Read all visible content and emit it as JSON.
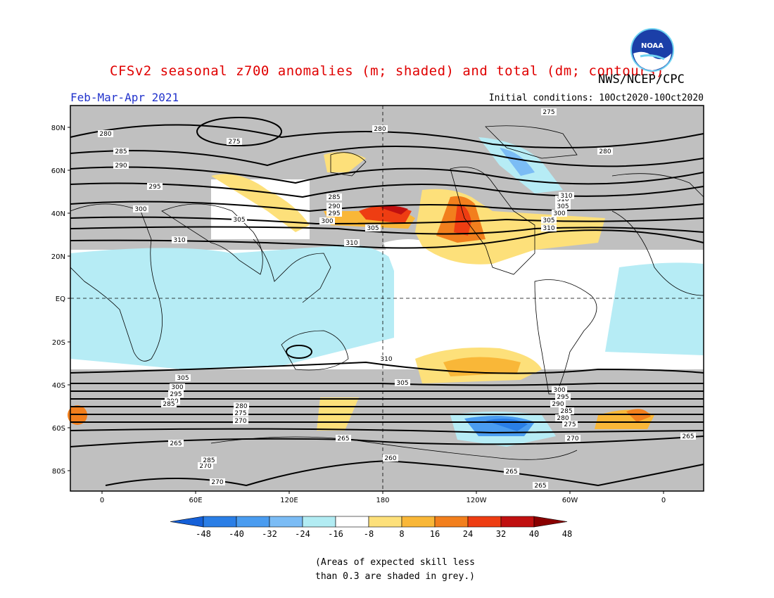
{
  "header": {
    "title": "CFSv2 seasonal z700 anomalies (m; shaded) and total (dm; contours)",
    "agency": "NWS/NCEP/CPC",
    "period": "Feb-Mar-Apr 2021",
    "initial_conditions": "Initial conditions: 10Oct2020-10Oct2020",
    "logo_text": "NOAA"
  },
  "axes": {
    "lat_ticks": [
      "80N",
      "60N",
      "40N",
      "20N",
      "EQ",
      "20S",
      "40S",
      "60S",
      "80S"
    ],
    "lon_ticks": [
      "0",
      "60E",
      "120E",
      "180",
      "120W",
      "60W",
      "0"
    ]
  },
  "contour_labels": [
    "275",
    "280",
    "280",
    "280",
    "275",
    "285",
    "290",
    "295",
    "300",
    "305",
    "310",
    "310",
    "305",
    "300",
    "295",
    "290",
    "285",
    "300",
    "305",
    "310",
    "305",
    "310",
    "310",
    "305",
    "300",
    "295",
    "290",
    "285",
    "280",
    "275",
    "270",
    "265",
    "265",
    "260",
    "265",
    "270",
    "285",
    "270",
    "300",
    "295",
    "290",
    "285",
    "280",
    "275",
    "270",
    "265",
    "265",
    "305",
    "310"
  ],
  "colorbar": {
    "labels": [
      "-48",
      "-40",
      "-32",
      "-24",
      "-16",
      "-8",
      "8",
      "16",
      "24",
      "32",
      "40",
      "48"
    ],
    "colors": [
      "#1560d8",
      "#2a7ee6",
      "#4a9cf0",
      "#7bbcf5",
      "#b2ecf3",
      "#ffffff",
      "#fde07a",
      "#f9b738",
      "#f27f1d",
      "#ee3d12",
      "#c01010",
      "#8a0000"
    ]
  },
  "note": {
    "line1": "(Areas of expected skill less",
    "line2": "than 0.3 are shaded in grey.)"
  }
}
